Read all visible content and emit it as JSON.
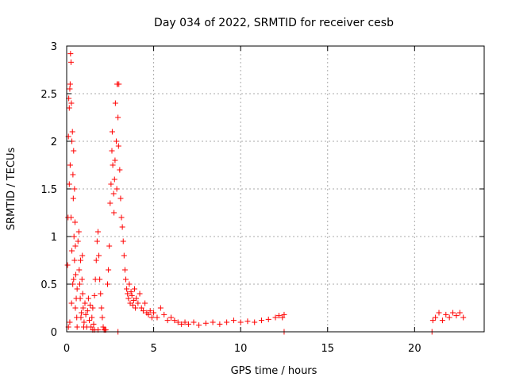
{
  "chart_data": {
    "type": "scatter",
    "title": "Day 034 of 2022, SRMTID for receiver cesb",
    "xlabel": "GPS time / hours",
    "ylabel": "SRMTID / TECUs",
    "xlim": [
      0,
      24
    ],
    "ylim": [
      0,
      3
    ],
    "xticks": [
      0,
      5,
      10,
      15,
      20
    ],
    "xtick_labels": [
      "0",
      "5",
      "10",
      "15",
      "20"
    ],
    "yticks": [
      0,
      0.5,
      1,
      1.5,
      2,
      2.5,
      3
    ],
    "ytick_labels": [
      "0",
      "0.5",
      "1",
      "1.5",
      "2",
      "2.5",
      "3"
    ],
    "grid": true,
    "marker": "+",
    "series": [
      {
        "name": "SRMTID",
        "color": "#ff0000",
        "points": [
          [
            0.05,
            0.7
          ],
          [
            0.08,
            1.2
          ],
          [
            0.1,
            2.05
          ],
          [
            0.12,
            2.45
          ],
          [
            0.15,
            2.35
          ],
          [
            0.18,
            2.55
          ],
          [
            0.2,
            2.6
          ],
          [
            0.22,
            2.92
          ],
          [
            0.25,
            2.83
          ],
          [
            0.27,
            2.4
          ],
          [
            0.3,
            2.0
          ],
          [
            0.33,
            2.1
          ],
          [
            0.36,
            1.65
          ],
          [
            0.38,
            1.4
          ],
          [
            0.4,
            1.9
          ],
          [
            0.42,
            1.0
          ],
          [
            0.45,
            1.5
          ],
          [
            0.48,
            1.15
          ],
          [
            0.5,
            0.9
          ],
          [
            0.52,
            0.6
          ],
          [
            0.55,
            0.35
          ],
          [
            0.58,
            0.15
          ],
          [
            0.6,
            0.05
          ],
          [
            0.15,
            1.55
          ],
          [
            0.2,
            1.75
          ],
          [
            0.25,
            1.2
          ],
          [
            0.3,
            0.85
          ],
          [
            0.35,
            0.5
          ],
          [
            0.18,
            0.1
          ],
          [
            0.28,
            0.3
          ],
          [
            0.1,
            0.05
          ],
          [
            0.4,
            0.55
          ],
          [
            0.45,
            0.75
          ],
          [
            0.5,
            0.25
          ],
          [
            0.6,
            0.45
          ],
          [
            0.65,
            0.95
          ],
          [
            0.7,
            1.05
          ],
          [
            0.72,
            0.65
          ],
          [
            0.75,
            0.5
          ],
          [
            0.78,
            0.35
          ],
          [
            0.8,
            0.75
          ],
          [
            0.82,
            0.15
          ],
          [
            0.85,
            0.2
          ],
          [
            0.88,
            0.55
          ],
          [
            0.9,
            0.8
          ],
          [
            0.92,
            0.4
          ],
          [
            0.95,
            0.25
          ],
          [
            0.98,
            0.05
          ],
          [
            1.0,
            0.1
          ],
          [
            1.05,
            0.3
          ],
          [
            1.1,
            0.18
          ],
          [
            1.15,
            0.05
          ],
          [
            1.2,
            0.22
          ],
          [
            1.25,
            0.35
          ],
          [
            1.3,
            0.12
          ],
          [
            1.35,
            0.28
          ],
          [
            1.4,
            0.05
          ],
          [
            1.45,
            0.15
          ],
          [
            1.5,
            0.25
          ],
          [
            1.55,
            0.08
          ],
          [
            1.6,
            0.38
          ],
          [
            1.65,
            0.55
          ],
          [
            1.7,
            0.75
          ],
          [
            1.75,
            0.95
          ],
          [
            1.8,
            1.05
          ],
          [
            1.85,
            0.8
          ],
          [
            1.9,
            0.55
          ],
          [
            1.95,
            0.4
          ],
          [
            2.0,
            0.25
          ],
          [
            2.05,
            0.15
          ],
          [
            2.1,
            0.05
          ],
          [
            2.15,
            0.02
          ],
          [
            2.2,
            0.02
          ],
          [
            2.25,
            0.02
          ],
          [
            1.5,
            0.02
          ],
          [
            1.6,
            0.02
          ],
          [
            1.8,
            0.02
          ],
          [
            2.35,
            0.5
          ],
          [
            2.4,
            0.65
          ],
          [
            2.45,
            0.9
          ],
          [
            2.5,
            1.35
          ],
          [
            2.55,
            1.55
          ],
          [
            2.6,
            1.9
          ],
          [
            2.62,
            2.1
          ],
          [
            2.65,
            1.75
          ],
          [
            2.7,
            1.45
          ],
          [
            2.72,
            1.25
          ],
          [
            2.75,
            1.6
          ],
          [
            2.78,
            1.8
          ],
          [
            2.8,
            2.4
          ],
          [
            2.85,
            2.0
          ],
          [
            2.88,
            1.5
          ],
          [
            2.9,
            2.6
          ],
          [
            2.92,
            2.6
          ],
          [
            2.95,
            2.25
          ],
          [
            2.98,
            1.95
          ],
          [
            3.0,
            2.6
          ],
          [
            3.05,
            1.7
          ],
          [
            3.1,
            1.4
          ],
          [
            3.15,
            1.2
          ],
          [
            3.2,
            1.1
          ],
          [
            3.25,
            0.95
          ],
          [
            3.3,
            0.8
          ],
          [
            3.35,
            0.65
          ],
          [
            3.4,
            0.55
          ],
          [
            3.45,
            0.45
          ],
          [
            3.5,
            0.4
          ],
          [
            3.55,
            0.35
          ],
          [
            3.6,
            0.5
          ],
          [
            3.65,
            0.3
          ],
          [
            3.7,
            0.42
          ],
          [
            3.75,
            0.38
          ],
          [
            3.8,
            0.28
          ],
          [
            3.85,
            0.33
          ],
          [
            3.9,
            0.45
          ],
          [
            3.95,
            0.25
          ],
          [
            4.0,
            0.35
          ],
          [
            4.1,
            0.3
          ],
          [
            4.2,
            0.4
          ],
          [
            4.3,
            0.25
          ],
          [
            4.4,
            0.22
          ],
          [
            4.5,
            0.3
          ],
          [
            4.6,
            0.2
          ],
          [
            4.7,
            0.18
          ],
          [
            4.8,
            0.22
          ],
          [
            4.9,
            0.15
          ],
          [
            5.0,
            0.2
          ],
          [
            5.2,
            0.15
          ],
          [
            5.4,
            0.25
          ],
          [
            5.6,
            0.18
          ],
          [
            5.8,
            0.12
          ],
          [
            6.0,
            0.15
          ],
          [
            6.2,
            0.12
          ],
          [
            6.4,
            0.1
          ],
          [
            6.6,
            0.08
          ],
          [
            6.8,
            0.1
          ],
          [
            7.0,
            0.08
          ],
          [
            7.3,
            0.1
          ],
          [
            7.6,
            0.07
          ],
          [
            8.0,
            0.09
          ],
          [
            8.4,
            0.1
          ],
          [
            8.8,
            0.08
          ],
          [
            9.2,
            0.1
          ],
          [
            9.6,
            0.12
          ],
          [
            10.0,
            0.1
          ],
          [
            10.4,
            0.11
          ],
          [
            10.8,
            0.1
          ],
          [
            11.2,
            0.12
          ],
          [
            11.6,
            0.13
          ],
          [
            12.0,
            0.15
          ],
          [
            12.2,
            0.17
          ],
          [
            12.4,
            0.15
          ],
          [
            12.5,
            0.18
          ],
          [
            2.95,
            0.0
          ],
          [
            12.5,
            0.0
          ],
          [
            21.0,
            0.0
          ],
          [
            21.05,
            0.12
          ],
          [
            21.2,
            0.15
          ],
          [
            21.4,
            0.2
          ],
          [
            21.6,
            0.12
          ],
          [
            21.8,
            0.18
          ],
          [
            22.0,
            0.15
          ],
          [
            22.2,
            0.2
          ],
          [
            22.4,
            0.17
          ],
          [
            22.6,
            0.2
          ],
          [
            22.8,
            0.15
          ]
        ]
      }
    ]
  }
}
